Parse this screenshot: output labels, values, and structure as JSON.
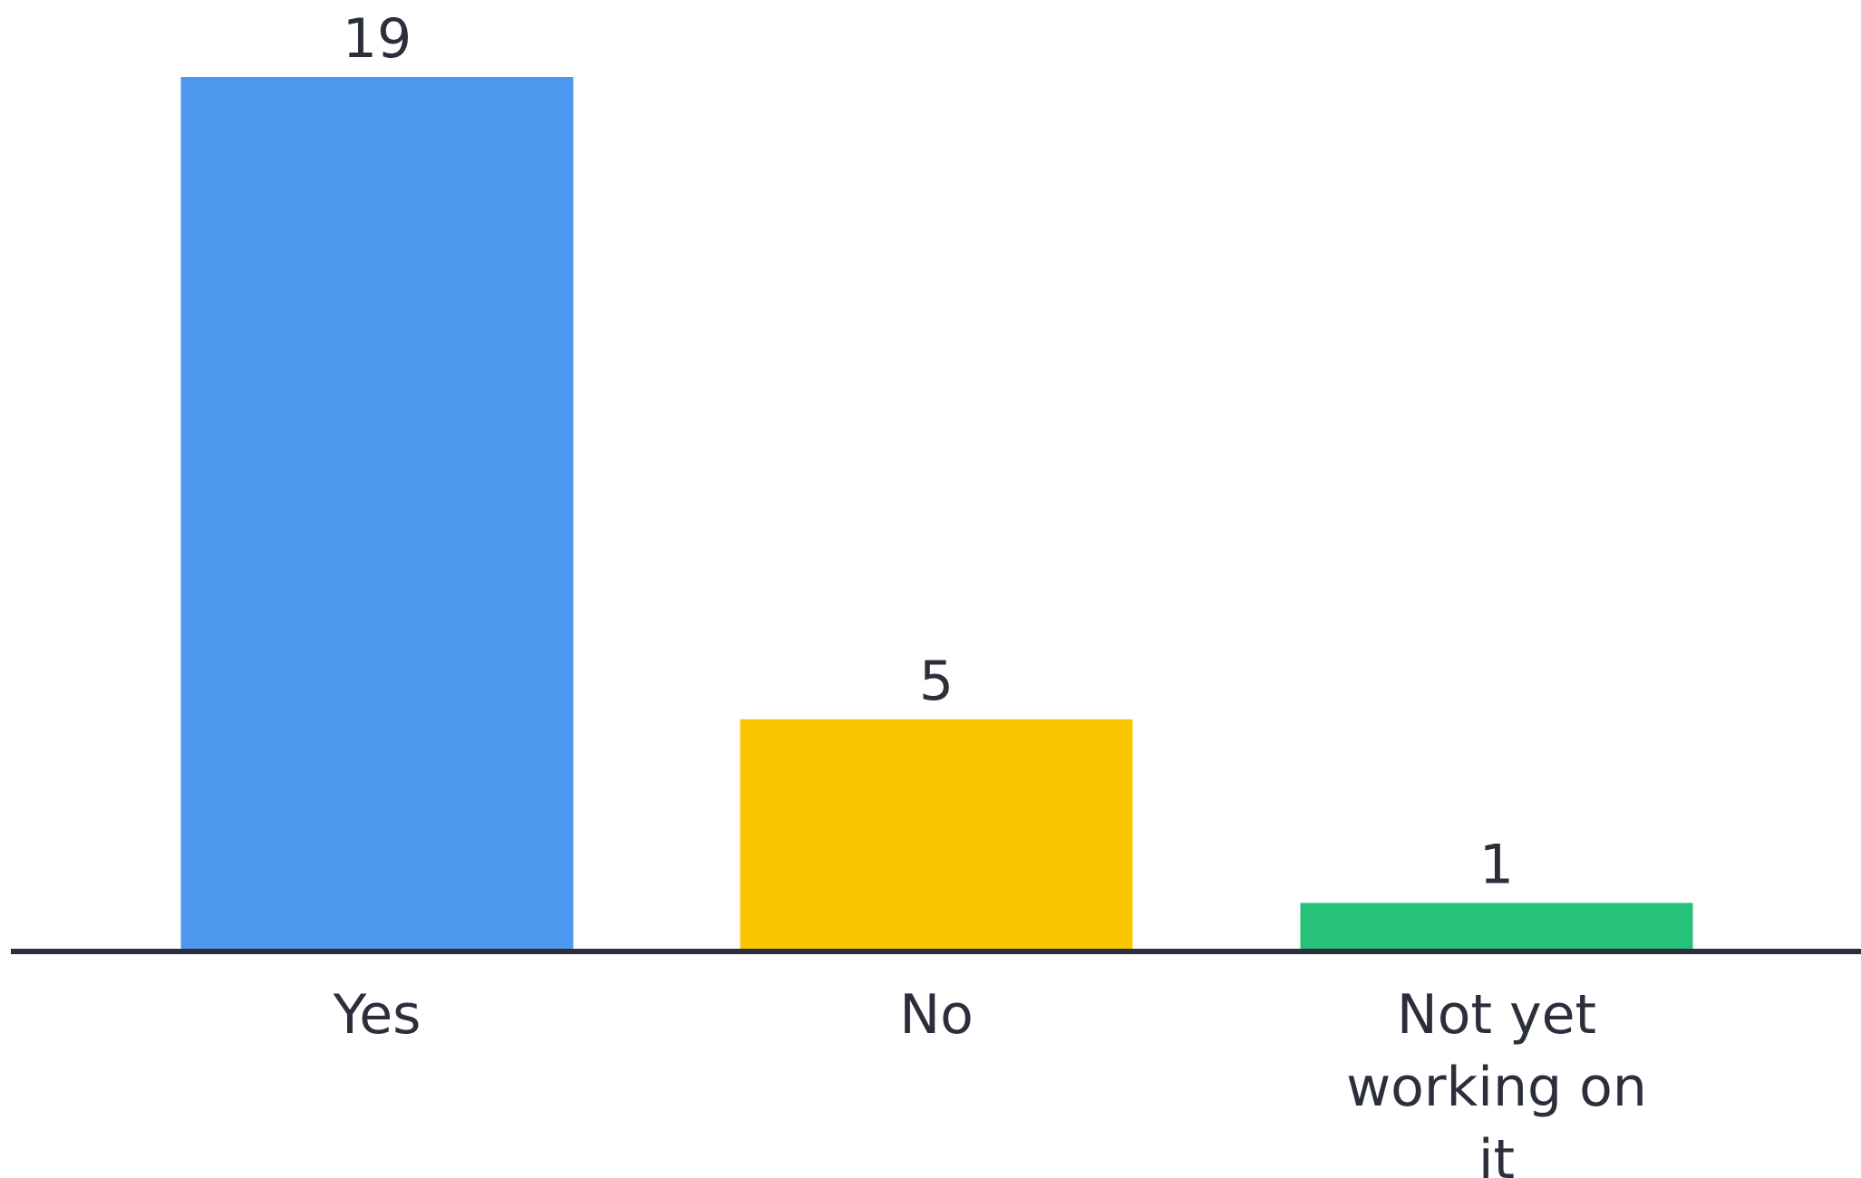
{
  "chart_data": {
    "type": "bar",
    "categories": [
      "Yes",
      "No",
      "Not yet working on it"
    ],
    "category_label_lines": [
      [
        "Yes"
      ],
      [
        "No"
      ],
      [
        "Not yet",
        "working on",
        "it"
      ]
    ],
    "values": [
      19,
      5,
      1
    ],
    "data_labels": [
      "19",
      "5",
      "1"
    ],
    "colors": [
      "#4f98ef",
      "#fbc401",
      "#26c279"
    ],
    "axis_color": "#2b2f3a",
    "ylim": [
      0,
      19
    ],
    "grid": false,
    "title": "",
    "xlabel": "",
    "ylabel": ""
  }
}
